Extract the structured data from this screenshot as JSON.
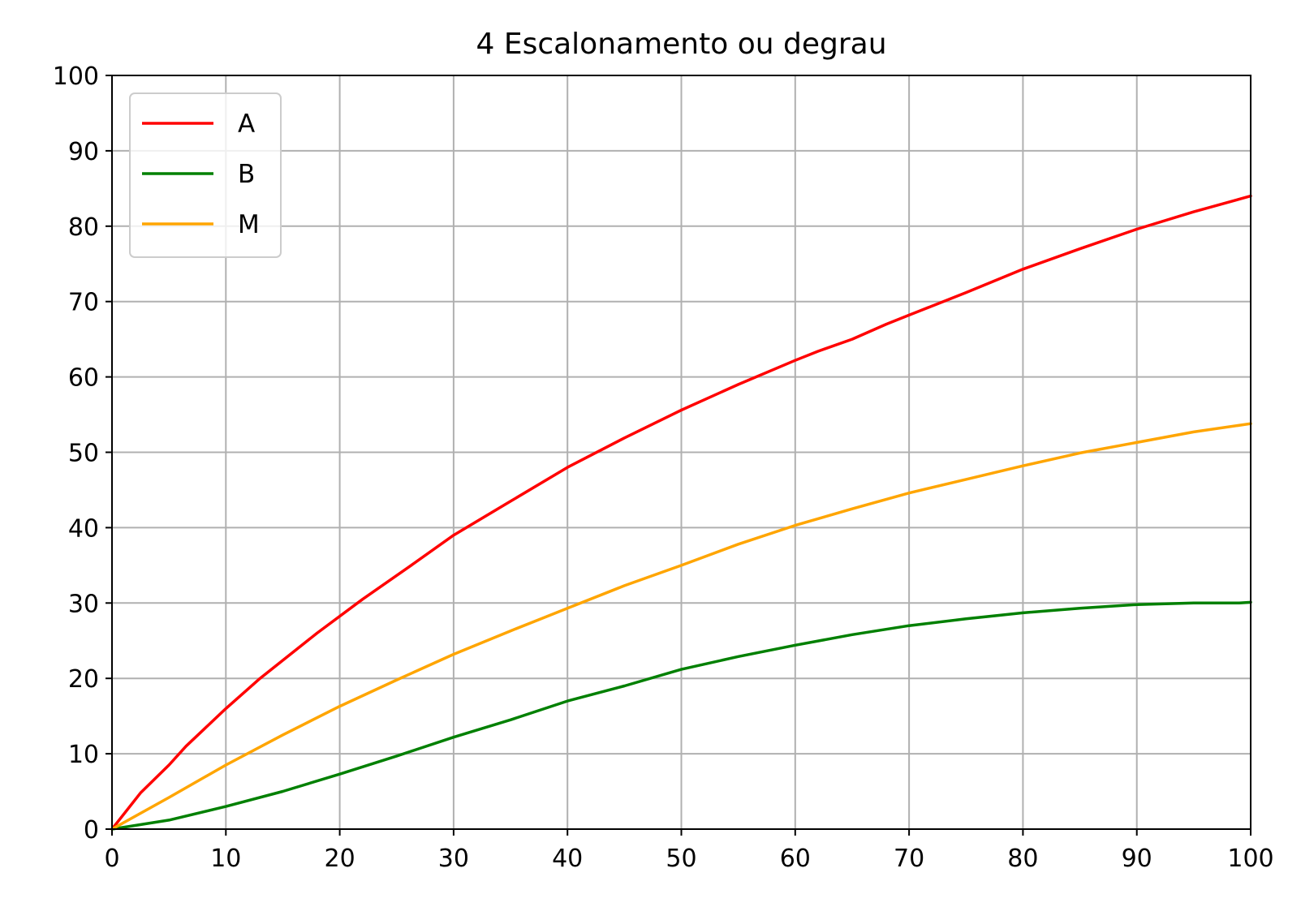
{
  "chart_data": {
    "type": "line",
    "title": "4 Escalonamento ou degrau",
    "xlabel": "",
    "ylabel": "",
    "xlim": [
      0,
      100
    ],
    "ylim": [
      0,
      100
    ],
    "xticks": [
      "0",
      "10",
      "20",
      "30",
      "40",
      "50",
      "60",
      "70",
      "80",
      "90",
      "100"
    ],
    "yticks": [
      "0",
      "10",
      "20",
      "30",
      "40",
      "50",
      "60",
      "70",
      "80",
      "90",
      "100"
    ],
    "grid": true,
    "legend_position": "top-left",
    "series": [
      {
        "name": "A",
        "color": "#ff0000",
        "x": [
          0,
          2.5,
          5,
          6.5,
          10,
          13,
          18,
          22,
          26,
          30,
          35,
          40,
          45,
          50,
          55,
          60,
          62,
          65,
          68,
          70,
          75,
          80,
          85,
          90,
          95,
          100
        ],
        "y": [
          0,
          4.8,
          8.5,
          11,
          16,
          20,
          26,
          30.5,
          34.7,
          39,
          43.5,
          48,
          51.9,
          55.6,
          59,
          62.2,
          63.4,
          65,
          67,
          68.2,
          71.2,
          74.3,
          77,
          79.6,
          81.9,
          84
        ]
      },
      {
        "name": "B",
        "color": "#008000",
        "x": [
          0,
          5,
          10,
          15,
          20,
          25,
          30,
          35,
          40,
          45,
          50,
          55,
          60,
          65,
          70,
          75,
          80,
          85,
          90,
          95,
          99,
          100
        ],
        "y": [
          0,
          1.2,
          3,
          5,
          7.3,
          9.7,
          12.2,
          14.5,
          17,
          19,
          21.2,
          22.9,
          24.4,
          25.8,
          27,
          27.9,
          28.7,
          29.3,
          29.8,
          30,
          30,
          30.1
        ]
      },
      {
        "name": "M",
        "color": "#ffa500",
        "x": [
          0,
          5,
          10,
          15,
          20,
          25,
          30,
          35,
          40,
          45,
          50,
          55,
          60,
          65,
          70,
          75,
          80,
          85,
          90,
          95,
          100
        ],
        "y": [
          0,
          4.2,
          8.5,
          12.5,
          16.3,
          19.8,
          23.2,
          26.3,
          29.3,
          32.3,
          35,
          37.8,
          40.3,
          42.5,
          44.6,
          46.4,
          48.2,
          49.9,
          51.3,
          52.7,
          53.8
        ]
      }
    ]
  }
}
